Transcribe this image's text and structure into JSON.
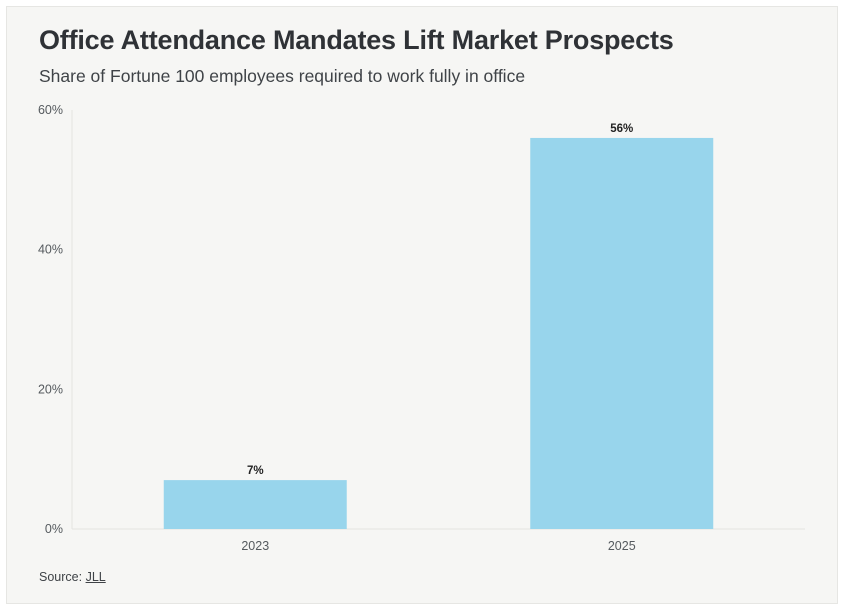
{
  "title": "Office Attendance Mandates Lift Market Prospects",
  "subtitle": "Share of Fortune 100 employees required to work fully in office",
  "source": {
    "prefix": "Source: ",
    "link_text": "JLL"
  },
  "colors": {
    "bar": "#98d5ec",
    "background": "#f6f6f4",
    "axis": "#e4e4e1"
  },
  "chart_data": {
    "type": "bar",
    "title": "Office Attendance Mandates Lift Market Prospects",
    "subtitle": "Share of Fortune 100 employees required to work fully in office",
    "xlabel": "",
    "ylabel": "",
    "categories": [
      "2023",
      "2025"
    ],
    "values": [
      7,
      56
    ],
    "data_labels": [
      "7%",
      "56%"
    ],
    "ylim": [
      0,
      60
    ],
    "yticks": [
      0,
      20,
      40,
      60
    ],
    "ytick_labels": [
      "0%",
      "20%",
      "40%",
      "60%"
    ],
    "grid": false,
    "legend": "none"
  }
}
